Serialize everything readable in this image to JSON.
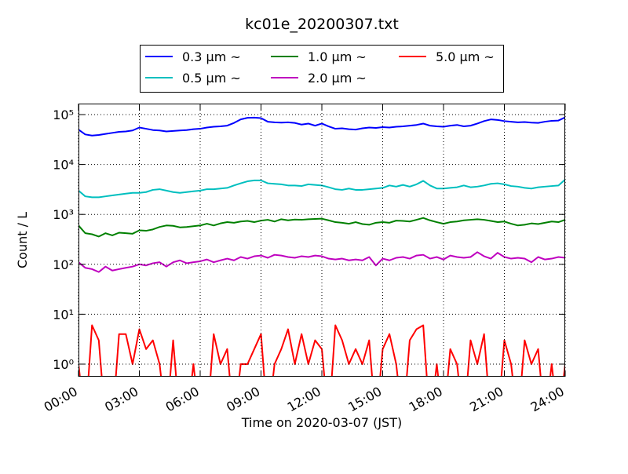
{
  "chart_data": {
    "type": "line",
    "title": "kc01e_20200307.txt",
    "xlabel": "Time on 2020-03-07 (JST)",
    "ylabel": "Count / L",
    "x": [
      0,
      20,
      40,
      60,
      80,
      100,
      120,
      140,
      160,
      180,
      200,
      220,
      240,
      260,
      280,
      300,
      320,
      340,
      360,
      380,
      400,
      420,
      440,
      460,
      480,
      500,
      520,
      540,
      560,
      580,
      600,
      620,
      640,
      660,
      680,
      700,
      720,
      740,
      760,
      780,
      800,
      820,
      840,
      860,
      880,
      900,
      920,
      940,
      960,
      980,
      1000,
      1020,
      1040,
      1060,
      1080,
      1100,
      1120,
      1140,
      1160,
      1180,
      1200,
      1220,
      1240,
      1260,
      1280,
      1300,
      1320,
      1340,
      1360,
      1380,
      1400,
      1420,
      1440
    ],
    "xlim": [
      0,
      1440
    ],
    "xticks": [
      {
        "value": 0,
        "label": "00:00"
      },
      {
        "value": 180,
        "label": "03:00"
      },
      {
        "value": 360,
        "label": "06:00"
      },
      {
        "value": 540,
        "label": "09:00"
      },
      {
        "value": 720,
        "label": "12:00"
      },
      {
        "value": 900,
        "label": "15:00"
      },
      {
        "value": 1080,
        "label": "18:00"
      },
      {
        "value": 1260,
        "label": "21:00"
      },
      {
        "value": 1440,
        "label": "24:00"
      }
    ],
    "ylim": [
      0.56,
      166000
    ],
    "yscale": "log",
    "yticks": [
      {
        "value": 1,
        "label": "10⁰"
      },
      {
        "value": 10,
        "label": "10¹"
      },
      {
        "value": 100,
        "label": "10²"
      },
      {
        "value": 1000,
        "label": "10³"
      },
      {
        "value": 10000,
        "label": "10⁴"
      },
      {
        "value": 100000,
        "label": "10⁵"
      }
    ],
    "grid": true,
    "legend": "upper center",
    "series": [
      {
        "name": "0.3 μm ~",
        "color": "#0000ff",
        "values": [
          50000,
          40000,
          38000,
          39000,
          41000,
          43000,
          45000,
          46000,
          48000,
          55000,
          52000,
          49000,
          48000,
          46000,
          47000,
          48000,
          49000,
          51000,
          52000,
          55000,
          57000,
          58000,
          60000,
          68000,
          80000,
          86000,
          87000,
          85000,
          72000,
          70000,
          69000,
          70000,
          68000,
          63000,
          66000,
          60000,
          66000,
          58000,
          52000,
          53000,
          51000,
          50000,
          53000,
          55000,
          54000,
          56000,
          55000,
          57000,
          58000,
          60000,
          62000,
          66000,
          60000,
          58000,
          57000,
          60000,
          62000,
          58000,
          60000,
          66000,
          74000,
          80000,
          78000,
          74000,
          72000,
          70000,
          71000,
          69000,
          68000,
          72000,
          75000,
          76000,
          88000
        ]
      },
      {
        "name": "0.5 μm ~",
        "color": "#00bfbf",
        "values": [
          3000,
          2300,
          2200,
          2200,
          2300,
          2400,
          2500,
          2600,
          2700,
          2700,
          2800,
          3100,
          3200,
          3000,
          2800,
          2700,
          2800,
          2900,
          3000,
          3200,
          3200,
          3300,
          3400,
          3800,
          4200,
          4600,
          4800,
          4800,
          4200,
          4100,
          4000,
          3800,
          3800,
          3700,
          4000,
          3900,
          3800,
          3500,
          3200,
          3100,
          3300,
          3100,
          3100,
          3200,
          3300,
          3400,
          3800,
          3600,
          3900,
          3600,
          4000,
          4700,
          3800,
          3300,
          3300,
          3400,
          3500,
          3800,
          3500,
          3600,
          3800,
          4100,
          4200,
          4000,
          3700,
          3600,
          3400,
          3300,
          3500,
          3600,
          3700,
          3800,
          5000
        ]
      },
      {
        "name": "1.0 μm ~",
        "color": "#008000",
        "values": [
          600,
          420,
          400,
          360,
          420,
          380,
          430,
          420,
          410,
          480,
          470,
          500,
          560,
          600,
          590,
          550,
          560,
          580,
          600,
          650,
          600,
          660,
          700,
          680,
          720,
          740,
          700,
          750,
          780,
          720,
          800,
          760,
          790,
          780,
          800,
          810,
          820,
          760,
          700,
          680,
          650,
          700,
          640,
          620,
          680,
          700,
          680,
          750,
          740,
          720,
          780,
          850,
          760,
          700,
          650,
          700,
          720,
          760,
          780,
          800,
          780,
          740,
          700,
          720,
          650,
          600,
          620,
          660,
          640,
          680,
          720,
          700,
          780
        ]
      },
      {
        "name": "2.0 μm ~",
        "color": "#bf00bf",
        "values": [
          110,
          85,
          80,
          70,
          90,
          75,
          80,
          85,
          90,
          100,
          95,
          105,
          110,
          90,
          110,
          120,
          105,
          110,
          115,
          125,
          110,
          120,
          130,
          120,
          140,
          130,
          145,
          150,
          135,
          155,
          150,
          140,
          135,
          145,
          140,
          150,
          145,
          130,
          125,
          130,
          120,
          125,
          120,
          140,
          95,
          130,
          120,
          135,
          140,
          130,
          150,
          155,
          130,
          140,
          125,
          150,
          140,
          135,
          140,
          175,
          145,
          130,
          170,
          140,
          130,
          135,
          130,
          110,
          140,
          125,
          130,
          140,
          135
        ]
      },
      {
        "name": "5.0 μm ~",
        "color": "#ff0000",
        "values": [
          1,
          0,
          6,
          3,
          0,
          0,
          4,
          4,
          1,
          5,
          2,
          3,
          1,
          0,
          3,
          0,
          0,
          1,
          0,
          0,
          4,
          1,
          2,
          0,
          1,
          1,
          2,
          4,
          0,
          1,
          2,
          5,
          1,
          4,
          1,
          3,
          2,
          0,
          6,
          3,
          1,
          2,
          1,
          3,
          0,
          2,
          4,
          1,
          0,
          3,
          5,
          6,
          0,
          1,
          0,
          2,
          1,
          0,
          3,
          1,
          4,
          0,
          0,
          3,
          1,
          0,
          3,
          1,
          2,
          0,
          1,
          0,
          1
        ]
      }
    ]
  }
}
